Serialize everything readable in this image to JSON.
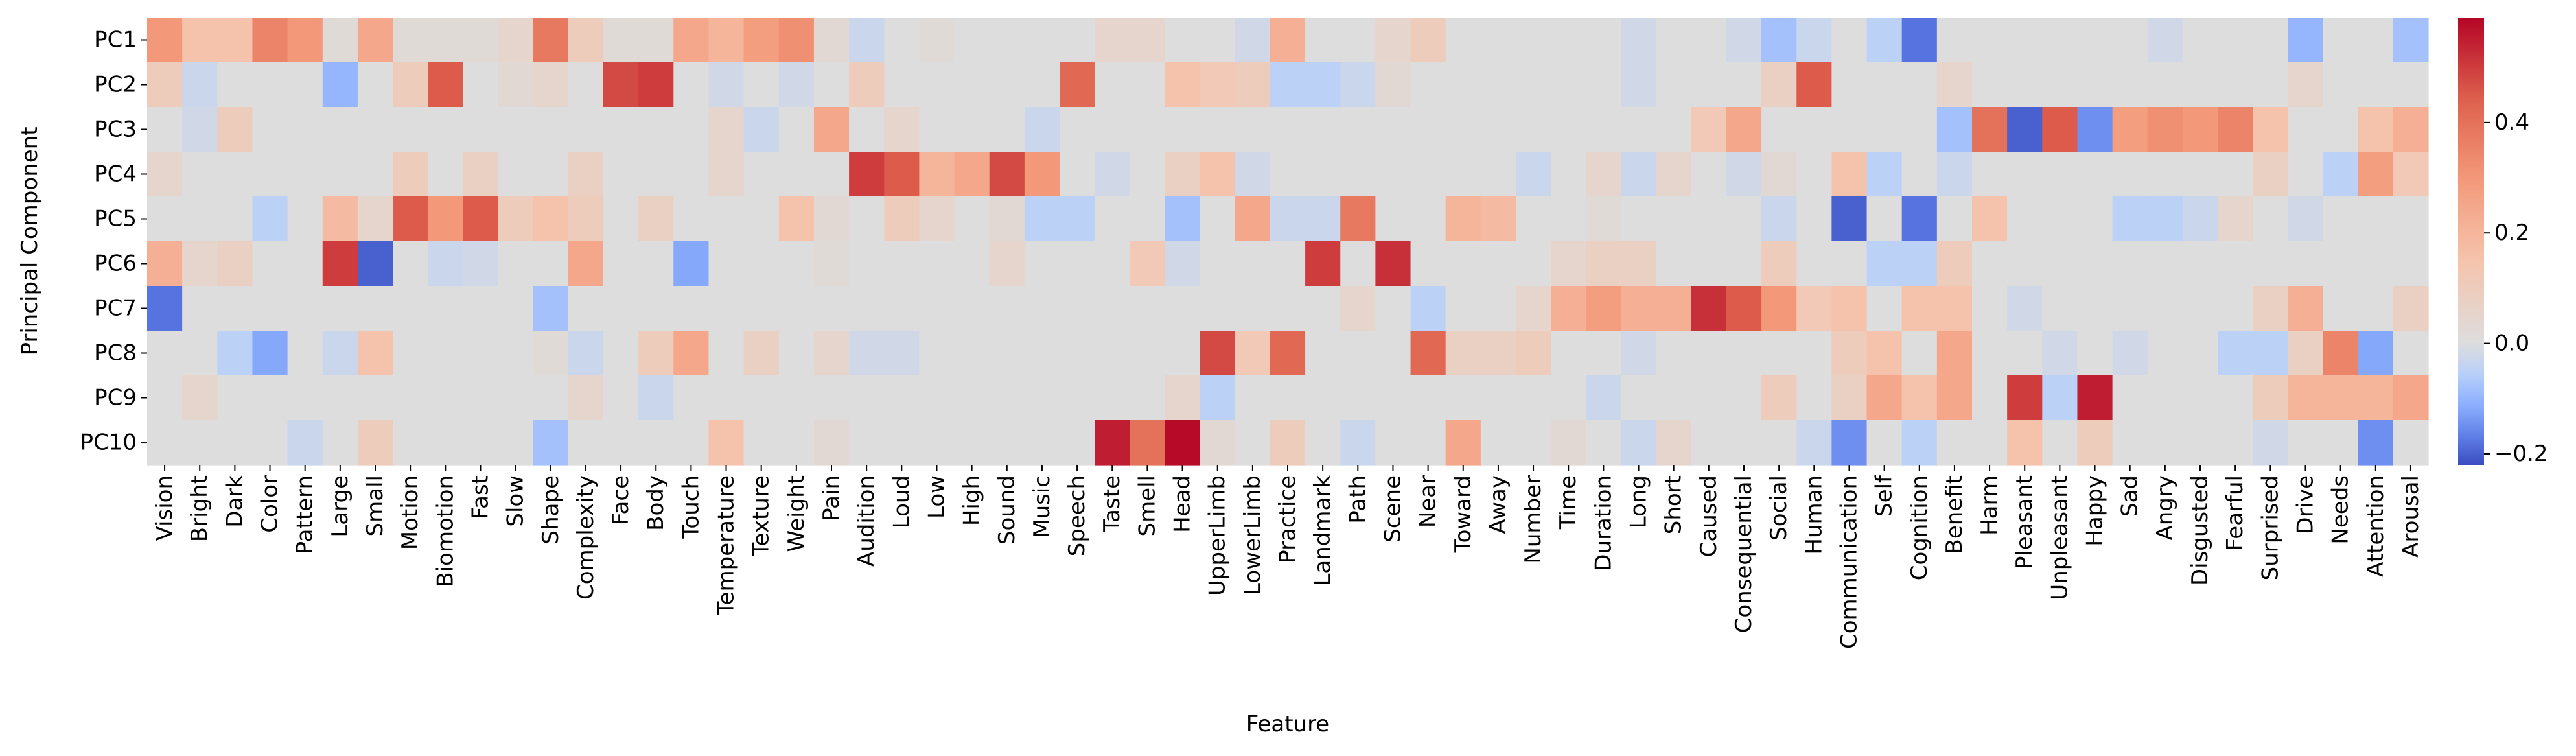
{
  "chart_data": {
    "type": "heatmap",
    "title": "",
    "xlabel": "Feature",
    "ylabel": "Principal Component",
    "x": [
      "Vision",
      "Bright",
      "Dark",
      "Color",
      "Pattern",
      "Large",
      "Small",
      "Motion",
      "Biomotion",
      "Fast",
      "Slow",
      "Shape",
      "Complexity",
      "Face",
      "Body",
      "Touch",
      "Temperature",
      "Texture",
      "Weight",
      "Pain",
      "Audition",
      "Loud",
      "Low",
      "High",
      "Sound",
      "Music",
      "Speech",
      "Taste",
      "Smell",
      "Head",
      "UpperLimb",
      "LowerLimb",
      "Practice",
      "Landmark",
      "Path",
      "Scene",
      "Near",
      "Toward",
      "Away",
      "Number",
      "Time",
      "Duration",
      "Long",
      "Short",
      "Caused",
      "Consequential",
      "Social",
      "Human",
      "Communication",
      "Self",
      "Cognition",
      "Benefit",
      "Harm",
      "Pleasant",
      "Unpleasant",
      "Happy",
      "Sad",
      "Angry",
      "Disgusted",
      "Fearful",
      "Surprised",
      "Drive",
      "Needs",
      "Attention",
      "Arousal"
    ],
    "y": [
      "PC1",
      "PC2",
      "PC3",
      "PC4",
      "PC5",
      "PC6",
      "PC7",
      "PC8",
      "PC9",
      "PC10"
    ],
    "values": [
      [
        0.3,
        0.15,
        0.15,
        0.35,
        0.3,
        0.02,
        0.25,
        0.02,
        0.02,
        0.02,
        0.05,
        0.38,
        0.1,
        0.02,
        0.02,
        0.25,
        0.2,
        0.28,
        0.32,
        0.03,
        -0.03,
        0.0,
        0.02,
        0.0,
        0.0,
        0.0,
        0.0,
        0.05,
        0.05,
        0.0,
        0.0,
        -0.02,
        0.22,
        0.0,
        0.0,
        0.05,
        0.1,
        0.0,
        0.0,
        0.0,
        0.0,
        0.0,
        -0.02,
        0.0,
        0.0,
        -0.02,
        -0.08,
        -0.03,
        0.0,
        -0.05,
        -0.18,
        0.0,
        0.0,
        0.0,
        0.0,
        0.0,
        0.0,
        -0.02,
        0.0,
        0.0,
        0.0,
        -0.1,
        0.0,
        0.0,
        -0.08
      ],
      [
        0.1,
        -0.03,
        0.0,
        0.0,
        0.0,
        -0.1,
        0.0,
        0.1,
        0.45,
        0.0,
        0.03,
        0.05,
        0.0,
        0.48,
        0.5,
        0.0,
        -0.02,
        0.0,
        -0.02,
        0.0,
        0.1,
        0.0,
        0.0,
        0.0,
        0.0,
        0.0,
        0.42,
        0.0,
        0.0,
        0.15,
        0.12,
        0.1,
        -0.05,
        -0.05,
        -0.03,
        0.03,
        0.0,
        0.0,
        0.0,
        0.0,
        0.0,
        0.0,
        -0.02,
        0.0,
        0.0,
        0.0,
        0.08,
        0.45,
        0.0,
        0.0,
        0.0,
        0.05,
        0.0,
        0.0,
        0.0,
        0.0,
        0.0,
        0.0,
        0.0,
        0.0,
        0.0,
        0.05,
        0.0,
        0.0,
        0.0
      ],
      [
        0.0,
        -0.02,
        0.1,
        0.0,
        0.0,
        0.0,
        0.0,
        0.0,
        0.0,
        0.0,
        0.0,
        0.0,
        0.0,
        0.0,
        0.0,
        0.0,
        0.05,
        -0.03,
        0.0,
        0.25,
        0.0,
        0.05,
        0.0,
        0.0,
        0.0,
        -0.03,
        0.0,
        0.0,
        0.0,
        0.0,
        0.0,
        0.0,
        0.0,
        0.0,
        0.0,
        0.0,
        0.0,
        0.0,
        0.0,
        0.0,
        0.0,
        0.0,
        0.0,
        0.0,
        0.12,
        0.25,
        0.0,
        0.0,
        0.0,
        0.0,
        0.0,
        -0.08,
        0.4,
        -0.2,
        0.45,
        -0.15,
        0.28,
        0.32,
        0.3,
        0.35,
        0.15,
        0.0,
        0.0,
        0.15,
        0.22
      ],
      [
        0.05,
        0.0,
        0.0,
        0.0,
        0.0,
        0.0,
        0.0,
        0.1,
        0.0,
        0.08,
        0.0,
        0.0,
        0.08,
        0.0,
        0.0,
        0.0,
        0.05,
        0.0,
        0.0,
        0.0,
        0.5,
        0.45,
        0.2,
        0.25,
        0.48,
        0.3,
        0.0,
        -0.02,
        0.0,
        0.08,
        0.15,
        -0.02,
        0.0,
        0.0,
        0.0,
        0.0,
        0.0,
        0.0,
        0.0,
        -0.03,
        0.0,
        0.05,
        -0.03,
        0.05,
        0.0,
        -0.02,
        0.03,
        0.0,
        0.15,
        -0.05,
        0.0,
        -0.03,
        0.0,
        0.0,
        0.0,
        0.0,
        0.0,
        0.0,
        0.0,
        0.0,
        0.08,
        0.0,
        -0.05,
        0.28,
        0.12
      ],
      [
        0.0,
        0.0,
        0.0,
        -0.05,
        0.0,
        0.18,
        0.05,
        0.45,
        0.3,
        0.45,
        0.1,
        0.15,
        0.1,
        0.0,
        0.08,
        0.0,
        0.0,
        0.0,
        0.15,
        0.03,
        0.0,
        0.1,
        0.05,
        0.0,
        0.03,
        -0.05,
        -0.05,
        0.0,
        0.0,
        -0.08,
        0.0,
        0.25,
        -0.03,
        -0.03,
        0.38,
        0.0,
        0.0,
        0.2,
        0.18,
        0.0,
        0.0,
        0.02,
        0.0,
        0.0,
        0.0,
        0.0,
        -0.03,
        0.0,
        -0.2,
        0.0,
        -0.18,
        0.0,
        0.15,
        0.0,
        0.0,
        0.0,
        -0.05,
        -0.05,
        -0.03,
        0.05,
        0.0,
        -0.02,
        0.0,
        0.0,
        0.0
      ],
      [
        0.22,
        0.05,
        0.08,
        0.0,
        0.0,
        0.5,
        -0.2,
        0.0,
        -0.03,
        -0.02,
        0.0,
        0.0,
        0.25,
        0.0,
        0.0,
        -0.12,
        0.0,
        0.0,
        0.0,
        0.02,
        0.0,
        0.0,
        0.0,
        0.0,
        0.05,
        0.0,
        0.0,
        0.0,
        0.12,
        -0.02,
        0.0,
        0.0,
        0.0,
        0.5,
        0.0,
        0.52,
        0.0,
        0.0,
        0.0,
        0.0,
        0.05,
        0.08,
        0.08,
        0.0,
        0.0,
        0.0,
        0.1,
        0.0,
        0.0,
        -0.05,
        -0.05,
        0.1,
        0.0,
        0.0,
        0.0,
        0.0,
        0.0,
        0.0,
        0.0,
        0.0,
        0.0,
        0.0,
        0.0,
        0.0,
        0.0
      ],
      [
        -0.18,
        0.0,
        0.0,
        0.0,
        0.0,
        0.0,
        0.0,
        0.0,
        0.0,
        0.0,
        0.0,
        -0.08,
        0.0,
        0.0,
        0.0,
        0.0,
        0.0,
        0.0,
        0.0,
        0.0,
        0.0,
        0.0,
        0.0,
        0.0,
        0.0,
        0.0,
        0.0,
        0.0,
        0.0,
        0.0,
        0.0,
        0.0,
        0.0,
        0.0,
        0.05,
        0.0,
        -0.05,
        0.0,
        0.0,
        0.05,
        0.22,
        0.28,
        0.22,
        0.22,
        0.52,
        0.45,
        0.3,
        0.12,
        0.15,
        0.0,
        0.15,
        0.15,
        0.0,
        -0.02,
        0.0,
        0.0,
        0.0,
        0.0,
        0.0,
        0.0,
        0.08,
        0.22,
        0.0,
        0.0,
        0.08
      ],
      [
        0.0,
        0.0,
        -0.05,
        -0.12,
        0.0,
        -0.03,
        0.15,
        0.0,
        0.0,
        0.0,
        0.0,
        0.02,
        -0.03,
        0.0,
        0.1,
        0.25,
        0.0,
        0.08,
        0.0,
        0.05,
        -0.02,
        -0.02,
        0.0,
        0.0,
        0.0,
        0.0,
        0.0,
        0.0,
        0.0,
        0.0,
        0.48,
        0.12,
        0.42,
        0.0,
        0.0,
        0.0,
        0.42,
        0.08,
        0.08,
        0.1,
        0.0,
        0.0,
        -0.02,
        0.0,
        0.0,
        0.0,
        0.0,
        0.0,
        0.1,
        0.15,
        0.0,
        0.25,
        0.0,
        0.0,
        -0.02,
        0.0,
        -0.02,
        0.0,
        0.0,
        -0.05,
        -0.05,
        0.08,
        0.35,
        -0.12,
        0.0
      ],
      [
        0.0,
        0.05,
        0.0,
        0.0,
        0.0,
        0.0,
        0.0,
        0.0,
        0.0,
        0.0,
        0.0,
        0.0,
        0.05,
        0.0,
        -0.03,
        0.0,
        0.0,
        0.0,
        0.0,
        0.0,
        0.0,
        0.0,
        0.0,
        0.0,
        0.0,
        0.0,
        0.0,
        0.0,
        0.0,
        0.05,
        -0.05,
        0.0,
        0.0,
        0.0,
        0.0,
        0.0,
        0.0,
        0.0,
        0.0,
        0.0,
        0.0,
        -0.03,
        0.0,
        0.0,
        0.0,
        0.0,
        0.1,
        0.0,
        0.08,
        0.25,
        0.15,
        0.25,
        0.0,
        0.5,
        -0.05,
        0.55,
        0.0,
        0.0,
        0.0,
        0.0,
        0.1,
        0.2,
        0.2,
        0.2,
        0.25
      ],
      [
        0.0,
        0.0,
        0.0,
        0.0,
        -0.03,
        0.0,
        0.1,
        0.0,
        0.0,
        0.0,
        0.0,
        -0.08,
        0.0,
        0.0,
        0.0,
        0.0,
        0.15,
        0.0,
        0.0,
        0.03,
        0.0,
        0.0,
        0.0,
        0.0,
        0.0,
        0.0,
        0.0,
        0.55,
        0.4,
        0.58,
        0.03,
        0.0,
        0.1,
        0.0,
        -0.03,
        0.0,
        0.0,
        0.25,
        0.0,
        0.0,
        0.03,
        0.0,
        -0.03,
        0.05,
        0.0,
        0.0,
        0.0,
        -0.03,
        -0.15,
        0.0,
        -0.05,
        0.0,
        0.0,
        0.15,
        0.0,
        0.1,
        0.0,
        0.0,
        0.0,
        0.0,
        -0.02,
        0.0,
        0.0,
        -0.15,
        0.0
      ]
    ],
    "vmin": -0.22,
    "vmax": 0.59,
    "center": 0.0,
    "colormap": "coolwarm",
    "colorbar_ticks": [
      0.4,
      0.2,
      0.0,
      -0.2
    ],
    "colorbar_tick_labels": [
      "0.4",
      "0.2",
      "0.0",
      "−0.2"
    ]
  }
}
